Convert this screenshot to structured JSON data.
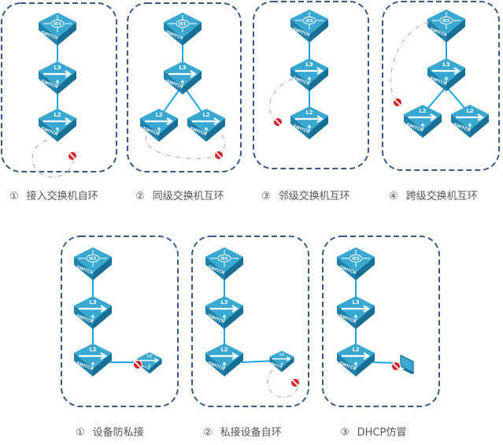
{
  "colors": {
    "frame": "#3a5a86",
    "link": "#1aa6e0",
    "loop": "#b5b5b5",
    "switch_top": "#3aa9d2",
    "switch_left": "#1f82ab",
    "switch_right": "#176f95",
    "block": "#d0282e"
  },
  "device_labels": {
    "core": "IES",
    "l3": "L3",
    "l2": "L2",
    "switch": "SWITCH"
  },
  "top_row": [
    {
      "num": "①",
      "label": "接入交换机自环"
    },
    {
      "num": "②",
      "label": "同级交换机互环"
    },
    {
      "num": "③",
      "label": "邻级交换机互环"
    },
    {
      "num": "④",
      "label": "跨级交换机互环"
    }
  ],
  "bottom_row": [
    {
      "num": "①",
      "label": "设备防私接"
    },
    {
      "num": "②",
      "label": "私接设备自环"
    },
    {
      "num": "③",
      "label": "DHCP仿冒"
    }
  ],
  "icons": {
    "block": "no-entry-icon",
    "terminal": "monitor-icon"
  }
}
